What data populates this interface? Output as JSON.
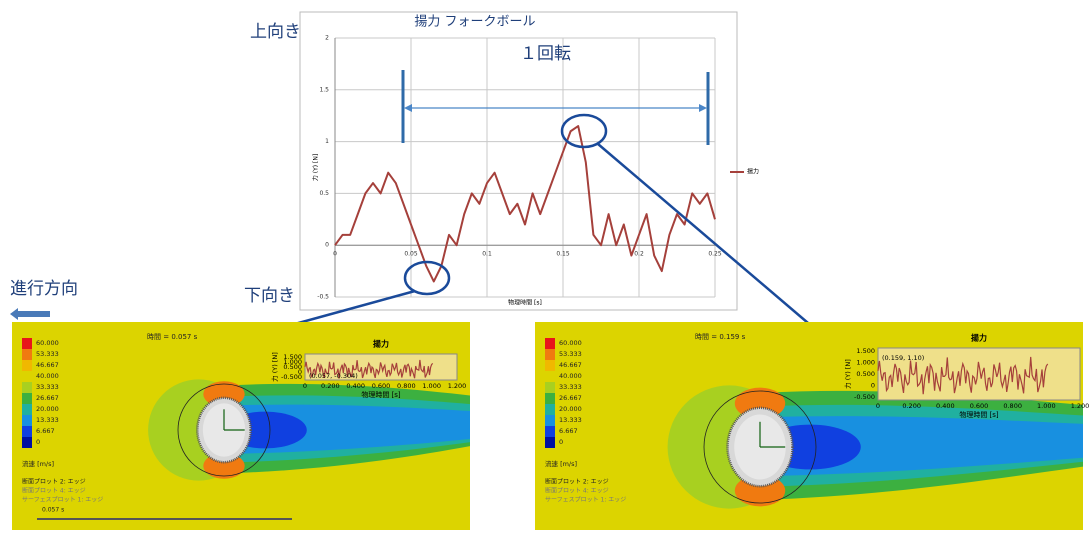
{
  "chart_data": {
    "type": "line",
    "title": "揚力 フォークボール",
    "x_label": "物理時間 [s]",
    "y_label": "力 (Y) [N]",
    "x": [
      0,
      0.005,
      0.01,
      0.015,
      0.02,
      0.025,
      0.03,
      0.035,
      0.04,
      0.045,
      0.05,
      0.055,
      0.06,
      0.065,
      0.07,
      0.075,
      0.08,
      0.085,
      0.09,
      0.095,
      0.1,
      0.105,
      0.11,
      0.115,
      0.12,
      0.125,
      0.13,
      0.135,
      0.14,
      0.145,
      0.15,
      0.155,
      0.16,
      0.165,
      0.17,
      0.175,
      0.18,
      0.185,
      0.19,
      0.195,
      0.2,
      0.205,
      0.21,
      0.215,
      0.22,
      0.225,
      0.23,
      0.235,
      0.24,
      0.245,
      0.25
    ],
    "series": [
      {
        "name": "揚力",
        "color": "#a5403b",
        "values": [
          0,
          0.1,
          0.1,
          0.3,
          0.5,
          0.6,
          0.5,
          0.7,
          0.6,
          0.4,
          0.2,
          0.0,
          -0.2,
          -0.35,
          -0.2,
          0.1,
          0.0,
          0.3,
          0.5,
          0.4,
          0.6,
          0.7,
          0.5,
          0.3,
          0.4,
          0.2,
          0.5,
          0.3,
          0.5,
          0.7,
          0.9,
          1.1,
          1.15,
          0.8,
          0.1,
          0.0,
          0.3,
          0.0,
          0.2,
          -0.1,
          0.1,
          0.3,
          -0.1,
          -0.25,
          0.1,
          0.3,
          0.2,
          0.5,
          0.4,
          0.5,
          0.25
        ]
      }
    ],
    "xlim": [
      0,
      0.25
    ],
    "xticks": [
      0,
      0.05,
      0.1,
      0.15,
      0.2,
      0.25
    ],
    "ylim": [
      -0.5,
      2
    ],
    "yticks": [
      -0.5,
      0,
      0.5,
      1,
      1.5,
      2
    ],
    "grid": true,
    "legend": "right",
    "annotations": {
      "up": "上向き",
      "down": "下向き",
      "rotation": "１回転",
      "direction": "進行方向"
    }
  },
  "panels": [
    {
      "time": "時間 = 0.057 s",
      "legend_values": [
        "60.000",
        "53.333",
        "46.667",
        "40.000",
        "33.333",
        "26.667",
        "20.000",
        "13.333",
        "6.667",
        "0"
      ],
      "legend_unit": "流速 [m/s]",
      "notes": [
        "断面プロット 2: エッジ",
        "断面プロット 4: エッジ",
        "サーフェスプロット 1: エッジ"
      ],
      "inset": {
        "title": "揚力",
        "ylabel": "力 (Y) [N]",
        "xlabel": "物理時間 [s]",
        "yticks": [
          "1.500",
          "1.000",
          "0.500",
          "0",
          "-0.500"
        ],
        "xticks": [
          "0",
          "0.200",
          "0.400",
          "0.600",
          "0.800",
          "1.000",
          "1.200"
        ],
        "marker": "(0.057, -0.304)"
      },
      "timeline": "0.057 s"
    },
    {
      "time": "時間 = 0.159 s",
      "legend_values": [
        "60.000",
        "53.333",
        "46.667",
        "40.000",
        "33.333",
        "26.667",
        "20.000",
        "13.333",
        "6.667",
        "0"
      ],
      "legend_unit": "流速 [m/s]",
      "notes": [
        "断面プロット 2: エッジ",
        "断面プロット 4: エッジ",
        "サーフェスプロット 1: エッジ"
      ],
      "inset": {
        "title": "揚力",
        "ylabel": "力 (Y) [N]",
        "xlabel": "物理時間 [s]",
        "yticks": [
          "1.500",
          "1.000",
          "0.500",
          "0",
          "-0.500"
        ],
        "xticks": [
          "0",
          "0.200",
          "0.400",
          "0.600",
          "0.800",
          "1.000",
          "1.200"
        ],
        "marker": "(0.159, 1.10)"
      }
    }
  ]
}
